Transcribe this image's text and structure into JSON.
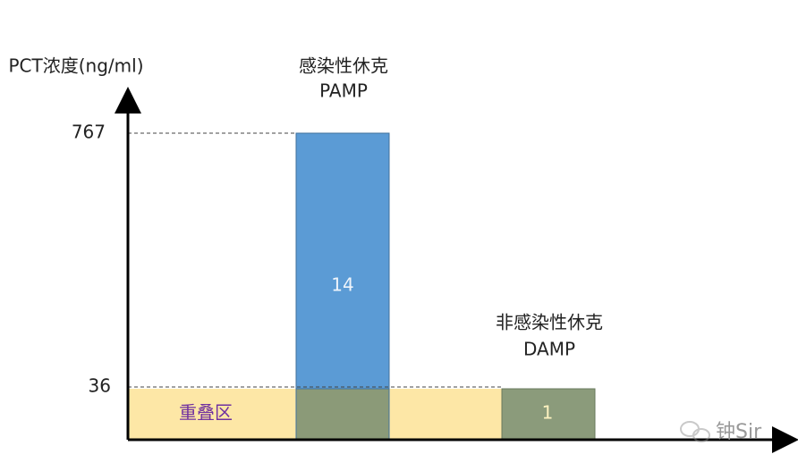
{
  "axis": {
    "label": "PCT浓度(ng/ml)",
    "ticks": [
      767,
      36
    ]
  },
  "groups": [
    {
      "title": "感染性休克",
      "subtitle": "PAMP",
      "bar_label": 14
    },
    {
      "title": "非感染性休克",
      "subtitle": "DAMP",
      "bar_label": 1
    }
  ],
  "overlap_label": "重叠区",
  "watermark": "钟Sir"
}
